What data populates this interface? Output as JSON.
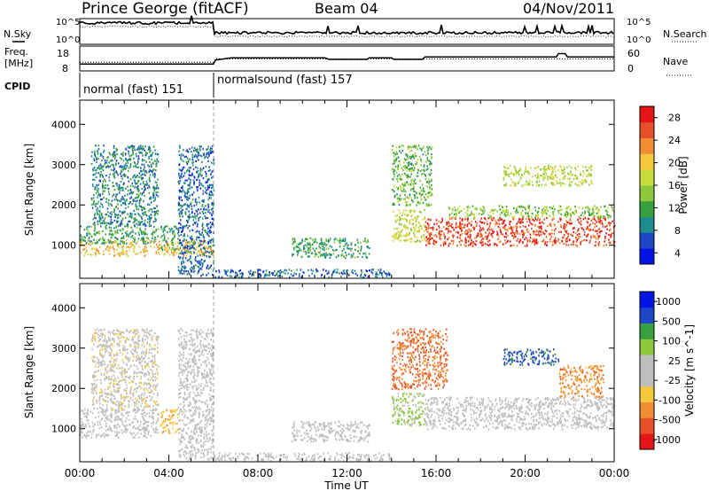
{
  "header": {
    "station": "Prince George (fitACF)",
    "beam": "Beam 04",
    "date": "04/Nov/2011"
  },
  "summary": {
    "nsky_label": "N.Sky",
    "nsearch_label": "N.Search",
    "freq_label_line1": "Freq.",
    "freq_label_line2": "[MHz]",
    "nave_label": "Nave",
    "cpid_label": "CPID",
    "left_ticks_top": [
      "10^5",
      "10^0"
    ],
    "right_ticks_top": [
      "10^5",
      "10^0"
    ],
    "freq_ticks": [
      "18",
      "8"
    ],
    "nave_ticks": [
      "60",
      "0"
    ],
    "cpid_segments": [
      {
        "label": "normal (fast) 151",
        "start_hour": 0,
        "end_hour": 6
      },
      {
        "label": "normalsound (fast) 157",
        "start_hour": 6,
        "end_hour": 24
      }
    ],
    "freq_step_mhz": [
      [
        0,
        10.5
      ],
      [
        6,
        10.5
      ],
      [
        6.1,
        12.5
      ],
      [
        6.8,
        13.5
      ],
      [
        11,
        13.5
      ],
      [
        11.2,
        12.8
      ],
      [
        12.9,
        12.8
      ],
      [
        13,
        13.5
      ],
      [
        14,
        13.5
      ],
      [
        14.1,
        12.8
      ],
      [
        15.4,
        12.8
      ],
      [
        15.5,
        14
      ],
      [
        21.4,
        14
      ],
      [
        21.5,
        15.6
      ],
      [
        21.8,
        15.6
      ],
      [
        21.9,
        14
      ],
      [
        24,
        14
      ]
    ],
    "nave_step": [
      [
        0,
        20
      ],
      [
        6,
        20
      ],
      [
        6.1,
        30
      ],
      [
        24,
        30
      ]
    ]
  },
  "chart_data": [
    {
      "type": "heatmap",
      "name": "power",
      "ylabel": "Slant Range [km]",
      "xlabel": "Time UT",
      "xlim": [
        0,
        24
      ],
      "ylim": [
        180,
        4600
      ],
      "x_tick_labels": [
        "00:00",
        "04:00",
        "08:00",
        "12:00",
        "16:00",
        "20:00",
        "00:00"
      ],
      "y_tick_labels": [
        "1000",
        "2000",
        "3000",
        "4000"
      ],
      "colorbar": {
        "label": "Power [dB]",
        "ticks": [
          "28",
          "24",
          "20",
          "16",
          "12",
          "8",
          "4"
        ],
        "range": [
          0,
          30
        ],
        "colors": [
          "#0014e6",
          "#1e46c8",
          "#1e8c8c",
          "#37a03c",
          "#8cc83c",
          "#c8dc3c",
          "#f5c83c",
          "#f08c32",
          "#e65028",
          "#e61414"
        ]
      },
      "scatter_regions": [
        {
          "t0": 0.0,
          "t1": 6.0,
          "r0": 750,
          "r1": 1150,
          "value": 20
        },
        {
          "t0": 0.0,
          "t1": 3.5,
          "r0": 1050,
          "r1": 1500,
          "value": 10
        },
        {
          "t0": 0.5,
          "t1": 3.5,
          "r0": 1500,
          "r1": 3500,
          "value": 8
        },
        {
          "t0": 3.6,
          "t1": 4.4,
          "r0": 900,
          "r1": 1500,
          "value": 10
        },
        {
          "t0": 4.4,
          "t1": 6.0,
          "r0": 250,
          "r1": 3500,
          "value": 6
        },
        {
          "t0": 6.0,
          "t1": 14.0,
          "r0": 220,
          "r1": 420,
          "value": 6
        },
        {
          "t0": 9.5,
          "t1": 13.0,
          "r0": 700,
          "r1": 1200,
          "value": 10
        },
        {
          "t0": 14.0,
          "t1": 15.5,
          "r0": 1100,
          "r1": 1900,
          "value": 16
        },
        {
          "t0": 14.0,
          "t1": 15.8,
          "r0": 2000,
          "r1": 3500,
          "value": 12
        },
        {
          "t0": 15.5,
          "t1": 24.0,
          "r0": 1000,
          "r1": 1700,
          "value": 26
        },
        {
          "t0": 16.5,
          "t1": 24.0,
          "r0": 1700,
          "r1": 2000,
          "value": 14
        },
        {
          "t0": 19.0,
          "t1": 23.0,
          "r0": 2500,
          "r1": 3000,
          "value": 16
        }
      ]
    },
    {
      "type": "heatmap",
      "name": "velocity",
      "ylabel": "Slant Range [km]",
      "xlabel": "Time UT",
      "xlim": [
        0,
        24
      ],
      "ylim": [
        180,
        4600
      ],
      "x_tick_labels": [
        "00:00",
        "04:00",
        "08:00",
        "12:00",
        "16:00",
        "20:00",
        "00:00"
      ],
      "y_tick_labels": [
        "1000",
        "2000",
        "3000",
        "4000"
      ],
      "colorbar": {
        "label": "Velocity [m s^-1]",
        "ticks": [
          "1000",
          "500",
          "100",
          "25",
          "-25",
          "-100",
          "-500",
          "-1000"
        ],
        "range": [
          -1200,
          1200
        ],
        "colors": [
          "#e61414",
          "#e65028",
          "#f08c32",
          "#f5c83c",
          "#bebebe",
          "#bebebe",
          "#8cc83c",
          "#37a03c",
          "#1e46c8",
          "#0014e6"
        ]
      },
      "scatter_regions": [
        {
          "t0": 0.0,
          "t1": 3.5,
          "r0": 800,
          "r1": 1500,
          "value": 0
        },
        {
          "t0": 0.5,
          "t1": 3.5,
          "r0": 1500,
          "r1": 3500,
          "value": -150
        },
        {
          "t0": 3.6,
          "t1": 4.4,
          "r0": 900,
          "r1": 1500,
          "value": -400
        },
        {
          "t0": 4.4,
          "t1": 6.0,
          "r0": 250,
          "r1": 3500,
          "value": 50
        },
        {
          "t0": 6.0,
          "t1": 14.0,
          "r0": 220,
          "r1": 420,
          "value": 0
        },
        {
          "t0": 9.5,
          "t1": 13.0,
          "r0": 700,
          "r1": 1200,
          "value": 0
        },
        {
          "t0": 14.0,
          "t1": 15.5,
          "r0": 1100,
          "r1": 1900,
          "value": 300
        },
        {
          "t0": 14.0,
          "t1": 16.5,
          "r0": 2000,
          "r1": 3500,
          "value": -700
        },
        {
          "t0": 15.5,
          "t1": 24.0,
          "r0": 1000,
          "r1": 1800,
          "value": 0
        },
        {
          "t0": 19.0,
          "t1": 21.5,
          "r0": 2600,
          "r1": 3000,
          "value": 800
        },
        {
          "t0": 21.5,
          "t1": 23.5,
          "r0": 1800,
          "r1": 2600,
          "value": -600
        }
      ]
    }
  ]
}
